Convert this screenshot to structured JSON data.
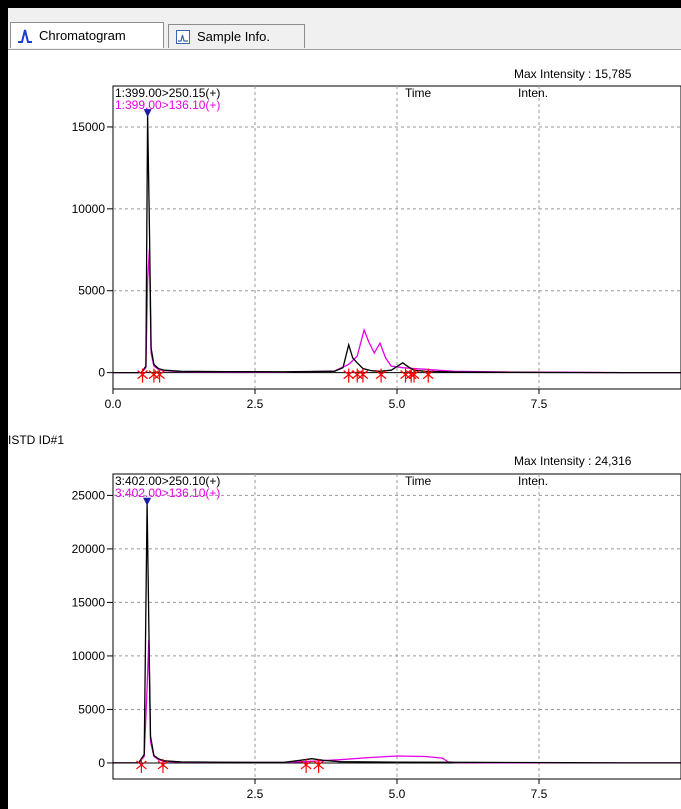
{
  "tabs": [
    {
      "label": "Chromatogram",
      "icon": "chromatogram-icon",
      "active": true
    },
    {
      "label": "Sample Info.",
      "icon": "sample-info-icon",
      "active": false
    }
  ],
  "colors": {
    "trace1": "#000000",
    "trace2": "#e600e6",
    "marker": "#ff0000",
    "apex": "#1a1aa0",
    "grid": "#9a9a9a"
  },
  "istd_label": "ISTD ID#1",
  "chart_data": [
    {
      "type": "line",
      "max_intensity_label": "Max Intensity :",
      "max_intensity_value": "15,785",
      "header_time": "Time",
      "header_inten": "Inten.",
      "xlim": [
        0,
        10
      ],
      "ylim": [
        -1000,
        17500
      ],
      "x_ticks": [
        0.0,
        2.5,
        5.0,
        7.5
      ],
      "x_tick_labels": [
        "0.0",
        "2.5",
        "5.0",
        "7.5"
      ],
      "y_ticks": [
        0,
        5000,
        10000,
        15000
      ],
      "y_tick_labels": [
        "0",
        "5000",
        "10000",
        "15000"
      ],
      "grid": true,
      "series": [
        {
          "name": "1:399.00>250.15(+)",
          "color": "#000000",
          "x": [
            0,
            0.5,
            0.58,
            0.61,
            0.64,
            0.67,
            0.72,
            0.8,
            0.9,
            1.2,
            2.0,
            3.0,
            3.9,
            4.05,
            4.15,
            4.22,
            4.3,
            4.4,
            4.55,
            4.7,
            4.9,
            5.1,
            5.2,
            5.3,
            5.5,
            6.0,
            7.0,
            8.0,
            9.0,
            10.0
          ],
          "values": [
            0,
            0,
            400,
            15785,
            9000,
            1500,
            500,
            250,
            150,
            80,
            60,
            50,
            80,
            300,
            1700,
            900,
            600,
            250,
            120,
            80,
            150,
            600,
            350,
            150,
            80,
            40,
            20,
            10,
            0,
            0
          ]
        },
        {
          "name": "1:399.00>136.10(+)",
          "color": "#e600e6",
          "x": [
            0,
            0.5,
            0.58,
            0.61,
            0.64,
            0.67,
            0.72,
            0.8,
            0.9,
            1.2,
            2.0,
            3.0,
            3.9,
            4.15,
            4.3,
            4.42,
            4.5,
            4.6,
            4.7,
            4.8,
            4.9,
            5.1,
            5.3,
            5.5,
            6.0,
            7.0,
            8.0,
            9.0,
            10.0
          ],
          "values": [
            0,
            0,
            300,
            5600,
            7500,
            1200,
            400,
            200,
            120,
            60,
            40,
            30,
            100,
            500,
            1000,
            2600,
            1900,
            1200,
            1800,
            900,
            400,
            300,
            250,
            200,
            80,
            30,
            20,
            0,
            0
          ]
        }
      ],
      "peak_markers_x": [
        0.52,
        0.72,
        0.82,
        4.15,
        4.3,
        4.4,
        4.72,
        5.15,
        5.25,
        5.3,
        5.55
      ]
    },
    {
      "type": "line",
      "max_intensity_label": "Max Intensity :",
      "max_intensity_value": "24,316",
      "header_time": "Time",
      "header_inten": "Inten.",
      "xlim": [
        0,
        10
      ],
      "ylim": [
        -1500,
        27000
      ],
      "x_ticks": [
        2.5,
        5.0,
        7.5
      ],
      "x_tick_labels": [
        "2.5",
        "5.0",
        "7.5"
      ],
      "y_ticks": [
        0,
        5000,
        10000,
        15000,
        20000,
        25000
      ],
      "y_tick_labels": [
        "0",
        "5000",
        "10000",
        "15000",
        "20000",
        "25000"
      ],
      "grid": true,
      "series": [
        {
          "name": "3:402.00>250.10(+)",
          "color": "#000000",
          "x": [
            0,
            0.45,
            0.55,
            0.6,
            0.63,
            0.66,
            0.72,
            0.8,
            0.9,
            1.2,
            2.0,
            3.0,
            3.3,
            3.5,
            3.7,
            4.0,
            5.0,
            6.0,
            7.0,
            8.0,
            9.0,
            10.0
          ],
          "values": [
            0,
            0,
            800,
            24316,
            13000,
            2500,
            700,
            400,
            200,
            100,
            60,
            50,
            250,
            400,
            250,
            120,
            80,
            60,
            40,
            20,
            0,
            0
          ]
        },
        {
          "name": "3:402.00>136.10(+)",
          "color": "#e600e6",
          "x": [
            0,
            0.45,
            0.55,
            0.6,
            0.63,
            0.66,
            0.72,
            0.8,
            0.9,
            1.2,
            2.0,
            3.0,
            3.5,
            4.0,
            4.5,
            5.0,
            5.5,
            5.8,
            5.9,
            6.0,
            7.0,
            8.0,
            9.0,
            10.0
          ],
          "values": [
            0,
            0,
            600,
            7000,
            11500,
            2000,
            600,
            300,
            150,
            80,
            50,
            50,
            150,
            300,
            500,
            650,
            600,
            450,
            100,
            30,
            10,
            0,
            0,
            0
          ]
        }
      ],
      "peak_markers_x": [
        0.5,
        0.88,
        3.4,
        3.62
      ]
    }
  ]
}
